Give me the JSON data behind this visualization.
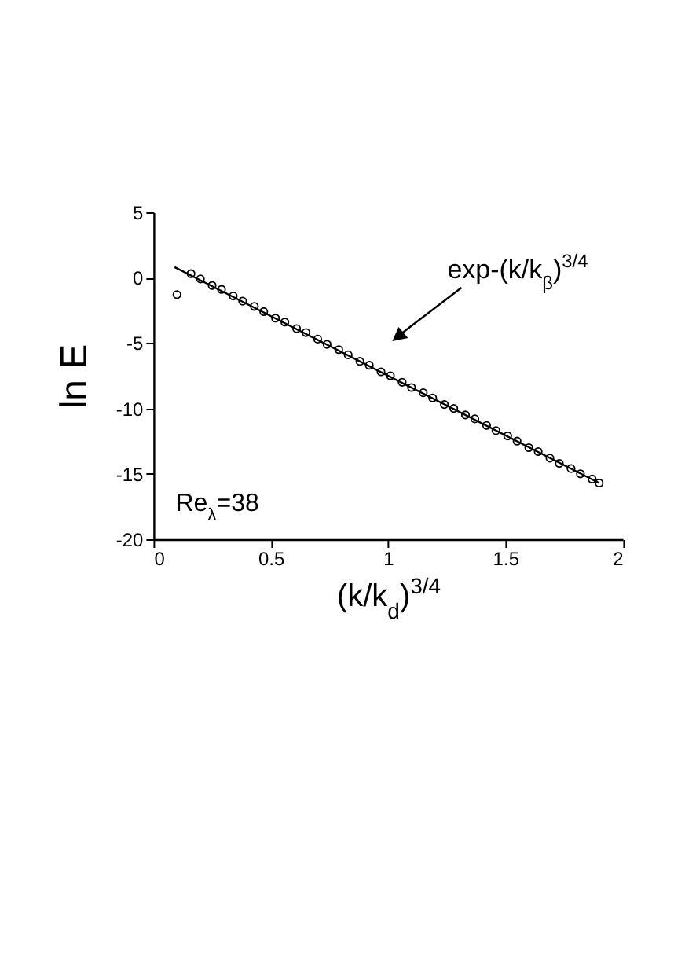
{
  "chart_data": {
    "type": "scatter",
    "xlabel": "(k/k$_{d}$)$^{3/4}$",
    "ylabel": "ln E",
    "xlim": [
      0,
      2
    ],
    "ylim": [
      -20,
      5
    ],
    "xticks": [
      0,
      0.5,
      1,
      1.5,
      2
    ],
    "yticks": [
      -20,
      -15,
      -10,
      -5,
      0,
      5
    ],
    "grid": false,
    "annotations": [
      "exp-(k/k$_{β}$)$^{3/4}$",
      "Re$_{λ}$=38"
    ],
    "series": [
      {
        "marker": "circle",
        "color": "#000000",
        "x": [
          0.1,
          0.16,
          0.2,
          0.25,
          0.29,
          0.34,
          0.38,
          0.43,
          0.47,
          0.52,
          0.56,
          0.61,
          0.65,
          0.7,
          0.74,
          0.79,
          0.83,
          0.88,
          0.92,
          0.97,
          1.01,
          1.06,
          1.1,
          1.15,
          1.19,
          1.24,
          1.28,
          1.33,
          1.37,
          1.42,
          1.46,
          1.51,
          1.55,
          1.6,
          1.64,
          1.69,
          1.73,
          1.78,
          1.82,
          1.87,
          1.9
        ],
        "values": [
          -1.3,
          0.3,
          -0.1,
          -0.6,
          -0.9,
          -1.4,
          -1.8,
          -2.2,
          -2.6,
          -3.1,
          -3.4,
          -3.9,
          -4.2,
          -4.7,
          -5.1,
          -5.5,
          -5.9,
          -6.4,
          -6.7,
          -7.2,
          -7.5,
          -8.0,
          -8.4,
          -8.8,
          -9.2,
          -9.7,
          -10.0,
          -10.5,
          -10.8,
          -11.3,
          -11.7,
          -12.1,
          -12.5,
          -13.0,
          -13.3,
          -13.8,
          -14.2,
          -14.6,
          -15.0,
          -15.4,
          -15.7
        ]
      },
      {
        "type": "line",
        "color": "#000000",
        "line_style": "solid",
        "x": [
          0.09,
          1.9
        ],
        "values": [
          0.8,
          -15.7
        ]
      }
    ]
  }
}
